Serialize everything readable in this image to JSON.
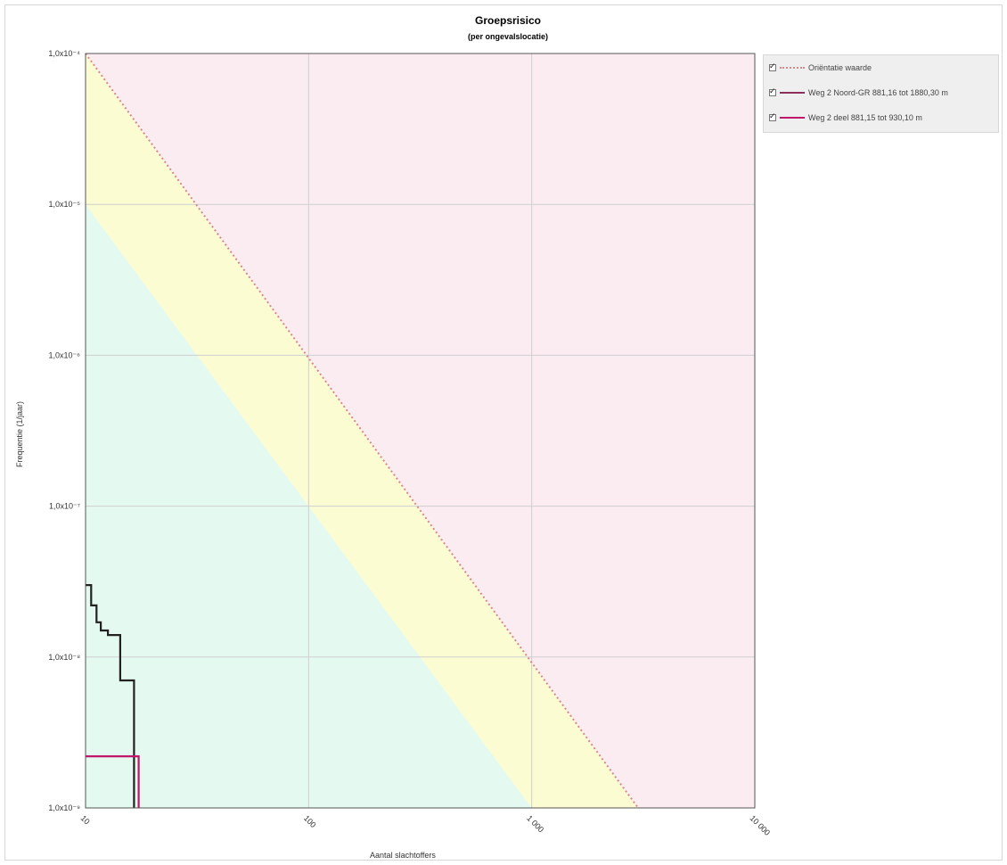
{
  "chart_data": {
    "type": "line",
    "title": "Groepsrisico",
    "subtitle": "(per ongevalslocatie)",
    "xlabel": "Aantal slachtoffers",
    "ylabel": "Frequentie (1/jaar)",
    "x_scale": "log",
    "y_scale": "log",
    "xlim": [
      10,
      10000
    ],
    "ylim": [
      1e-09,
      0.0001
    ],
    "x_ticks": [
      "10",
      "100",
      "1 000",
      "10 000"
    ],
    "y_ticks": [
      "1,0x10⁻⁴",
      "1,0x10⁻⁵",
      "1,0x10⁻⁶",
      "1,0x10⁻⁷",
      "1,0x10⁻⁸",
      "1,0x10⁻⁹"
    ],
    "grid": true,
    "legend_position": "right",
    "zones": [
      {
        "name": "green",
        "color": "#e4f9f0",
        "polygon": [
          [
            10,
            1e-05
          ],
          [
            1000,
            1e-09
          ],
          [
            10,
            1e-09
          ]
        ]
      },
      {
        "name": "yellow",
        "color": "#fbfcd2",
        "polygon": [
          [
            10,
            0.0001
          ],
          [
            3000,
            1e-09
          ],
          [
            1000,
            1e-09
          ],
          [
            10,
            1e-05
          ]
        ]
      },
      {
        "name": "pink",
        "color": "#fbecf2",
        "polygon": [
          [
            10,
            0.0001
          ],
          [
            10000,
            0.0001
          ],
          [
            10000,
            1e-09
          ],
          [
            3000,
            1e-09
          ]
        ]
      }
    ],
    "series": [
      {
        "name": "Oriëntatie waarde",
        "color": "#d48a8a",
        "dash": true,
        "x": [
          10,
          3000
        ],
        "y": [
          0.0001,
          1e-09
        ]
      },
      {
        "name": "Weg 2 Noord-GR 881,16 tot 1880,30 m",
        "color": "#222222",
        "step": true,
        "x": [
          10,
          10.6,
          10.6,
          11.2,
          11.2,
          11.7,
          11.7,
          12.6,
          12.6,
          14.3,
          14.3,
          16.5,
          16.5
        ],
        "y": [
          3e-08,
          3e-08,
          2.2e-08,
          2.2e-08,
          1.7e-08,
          1.7e-08,
          1.5e-08,
          1.5e-08,
          1.4e-08,
          1.4e-08,
          7e-09,
          7e-09,
          1e-09
        ]
      },
      {
        "name": "Weg 2 deel 881,15 tot 930,10 m",
        "color": "#c0176b",
        "step": true,
        "x": [
          10,
          17.3,
          17.3
        ],
        "y": [
          2.2e-09,
          2.2e-09,
          1e-09
        ]
      }
    ]
  },
  "legend": {
    "items": [
      {
        "label": "Oriëntatie waarde",
        "color": "#d48a8a",
        "style": "dotted"
      },
      {
        "label": "Weg 2 Noord-GR 881,16 tot 1880,30 m",
        "color": "#8c2f5a",
        "style": "solid"
      },
      {
        "label": "Weg 2 deel 881,15 tot 930,10 m",
        "color": "#c0176b",
        "style": "solid"
      }
    ]
  }
}
